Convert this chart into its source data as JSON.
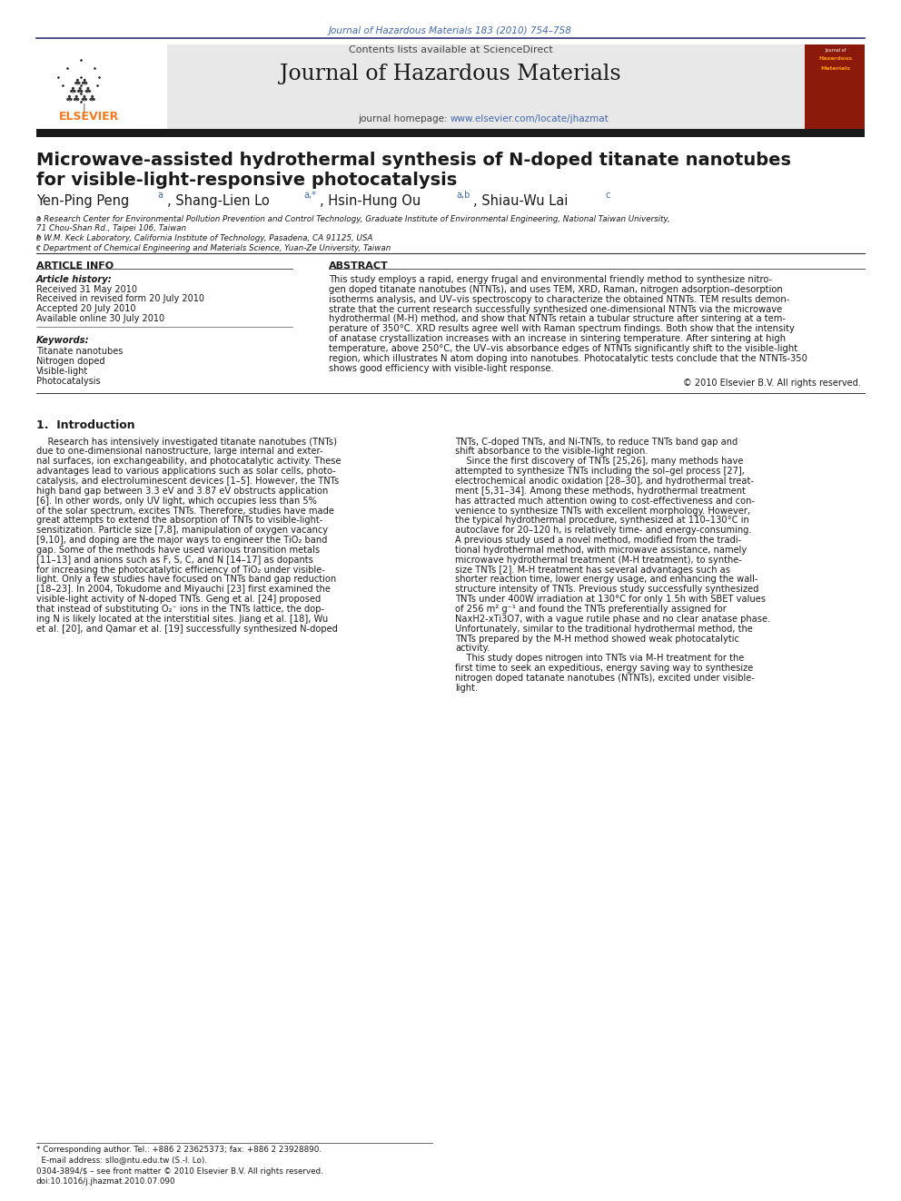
{
  "page_width": 9.92,
  "page_height": 13.23,
  "bg_color": "#ffffff",
  "top_citation": "Journal of Hazardous Materials 183 (2010) 754–758",
  "journal_name": "Journal of Hazardous Materials",
  "contents_line": "Contents lists available at ScienceDirect",
  "homepage_line": "journal homepage: www.elsevier.com/locate/jhazmat",
  "paper_title_line1": "Microwave-assisted hydrothermal synthesis of N-doped titanate nanotubes",
  "paper_title_line2": "for visible-light-responsive photocatalysis",
  "section_article_info": "ARTICLE INFO",
  "section_abstract": "ABSTRACT",
  "article_history_label": "Article history:",
  "history_items": [
    "Received 31 May 2010",
    "Received in revised form 20 July 2010",
    "Accepted 20 July 2010",
    "Available online 30 July 2010"
  ],
  "keywords_label": "Keywords:",
  "keywords": [
    "Titanate nanotubes",
    "Nitrogen doped",
    "Visible-light",
    "Photocatalysis"
  ],
  "copyright": "© 2010 Elsevier B.V. All rights reserved.",
  "intro_heading": "1.  Introduction",
  "footnote_corresponding": "* Corresponding author. Tel.: +886 2 23625373; fax: +886 2 23928890.",
  "footnote_email": "  E-mail address: sllo@ntu.edu.tw (S.-l. Lo).",
  "footnote_issn": "0304-3894/$ – see front matter © 2010 Elsevier B.V. All rights reserved.",
  "footnote_doi": "doi:10.1016/j.jhazmat.2010.07.090",
  "header_bg": "#e8e8e8",
  "elsevier_orange": "#f47920",
  "link_color": "#4169b0",
  "dark_bar_color": "#1a1a1a",
  "abstract_lines": [
    "This study employs a rapid, energy frugal and environmental friendly method to synthesize nitro-",
    "gen doped titanate nanotubes (NTNTs), and uses TEM, XRD, Raman, nitrogen adsorption–desorption",
    "isotherms analysis, and UV–vis spectroscopy to characterize the obtained NTNTs. TEM results demon-",
    "strate that the current research successfully synthesized one-dimensional NTNTs via the microwave",
    "hydrothermal (M-H) method, and show that NTNTs retain a tubular structure after sintering at a tem-",
    "perature of 350°C. XRD results agree well with Raman spectrum findings. Both show that the intensity",
    "of anatase crystallization increases with an increase in sintering temperature. After sintering at high",
    "temperature, above 250°C, the UV–vis absorbance edges of NTNTs significantly shift to the visible-light",
    "region, which illustrates N atom doping into nanotubes. Photocatalytic tests conclude that the NTNTs-350",
    "shows good efficiency with visible-light response."
  ],
  "col1_lines": [
    "    Research has intensively investigated titanate nanotubes (TNTs)",
    "due to one-dimensional nanostructure, large internal and exter-",
    "nal surfaces, ion exchangeability, and photocatalytic activity. These",
    "advantages lead to various applications such as solar cells, photo-",
    "catalysis, and electroluminescent devices [1–5]. However, the TNTs",
    "high band gap between 3.3 eV and 3.87 eV obstructs application",
    "[6]. In other words, only UV light, which occupies less than 5%",
    "of the solar spectrum, excites TNTs. Therefore, studies have made",
    "great attempts to extend the absorption of TNTs to visible-light-",
    "sensitization. Particle size [7,8], manipulation of oxygen vacancy",
    "[9,10], and doping are the major ways to engineer the TiO₂ band",
    "gap. Some of the methods have used various transition metals",
    "[11–13] and anions such as F, S, C, and N [14–17] as dopants",
    "for increasing the photocatalytic efficiency of TiO₂ under visible-",
    "light. Only a few studies have focused on TNTs band gap reduction",
    "[18–23]. In 2004, Tokudome and Miyauchi [23] first examined the",
    "visible-light activity of N-doped TNTs. Geng et al. [24] proposed",
    "that instead of substituting O₂⁻ ions in the TNTs lattice, the dop-",
    "ing N is likely located at the interstitial sites. Jiang et al. [18], Wu",
    "et al. [20], and Qamar et al. [19] successfully synthesized N-doped"
  ],
  "col2_lines": [
    "TNTs, C-doped TNTs, and Ni-TNTs, to reduce TNTs band gap and",
    "shift absorbance to the visible-light region.",
    "    Since the first discovery of TNTs [25,26], many methods have",
    "attempted to synthesize TNTs including the sol–gel process [27],",
    "electrochemical anodic oxidation [28–30], and hydrothermal treat-",
    "ment [5,31–34]. Among these methods, hydrothermal treatment",
    "has attracted much attention owing to cost-effectiveness and con-",
    "venience to synthesize TNTs with excellent morphology. However,",
    "the typical hydrothermal procedure, synthesized at 110–130°C in",
    "autoclave for 20–120 h, is relatively time- and energy-consuming.",
    "A previous study used a novel method, modified from the tradi-",
    "tional hydrothermal method, with microwave assistance, namely",
    "microwave hydrothermal treatment (M-H treatment), to synthe-",
    "size TNTs [2]. M-H treatment has several advantages such as",
    "shorter reaction time, lower energy usage, and enhancing the wall-",
    "structure intensity of TNTs. Previous study successfully synthesized",
    "TNTs under 400W irradiation at 130°C for only 1.5h with SBET values",
    "of 256 m² g⁻¹ and found the TNTs preferentially assigned for",
    "NaxH2-xTi3O7, with a vague rutile phase and no clear anatase phase.",
    "Unfortunately, similar to the traditional hydrothermal method, the",
    "TNTs prepared by the M-H method showed weak photocatalytic",
    "activity.",
    "    This study dopes nitrogen into TNTs via M-H treatment for the",
    "first time to seek an expeditious, energy saving way to synthesize",
    "nitrogen doped tatanate nanotubes (NTNTs), excited under visible-",
    "light."
  ]
}
